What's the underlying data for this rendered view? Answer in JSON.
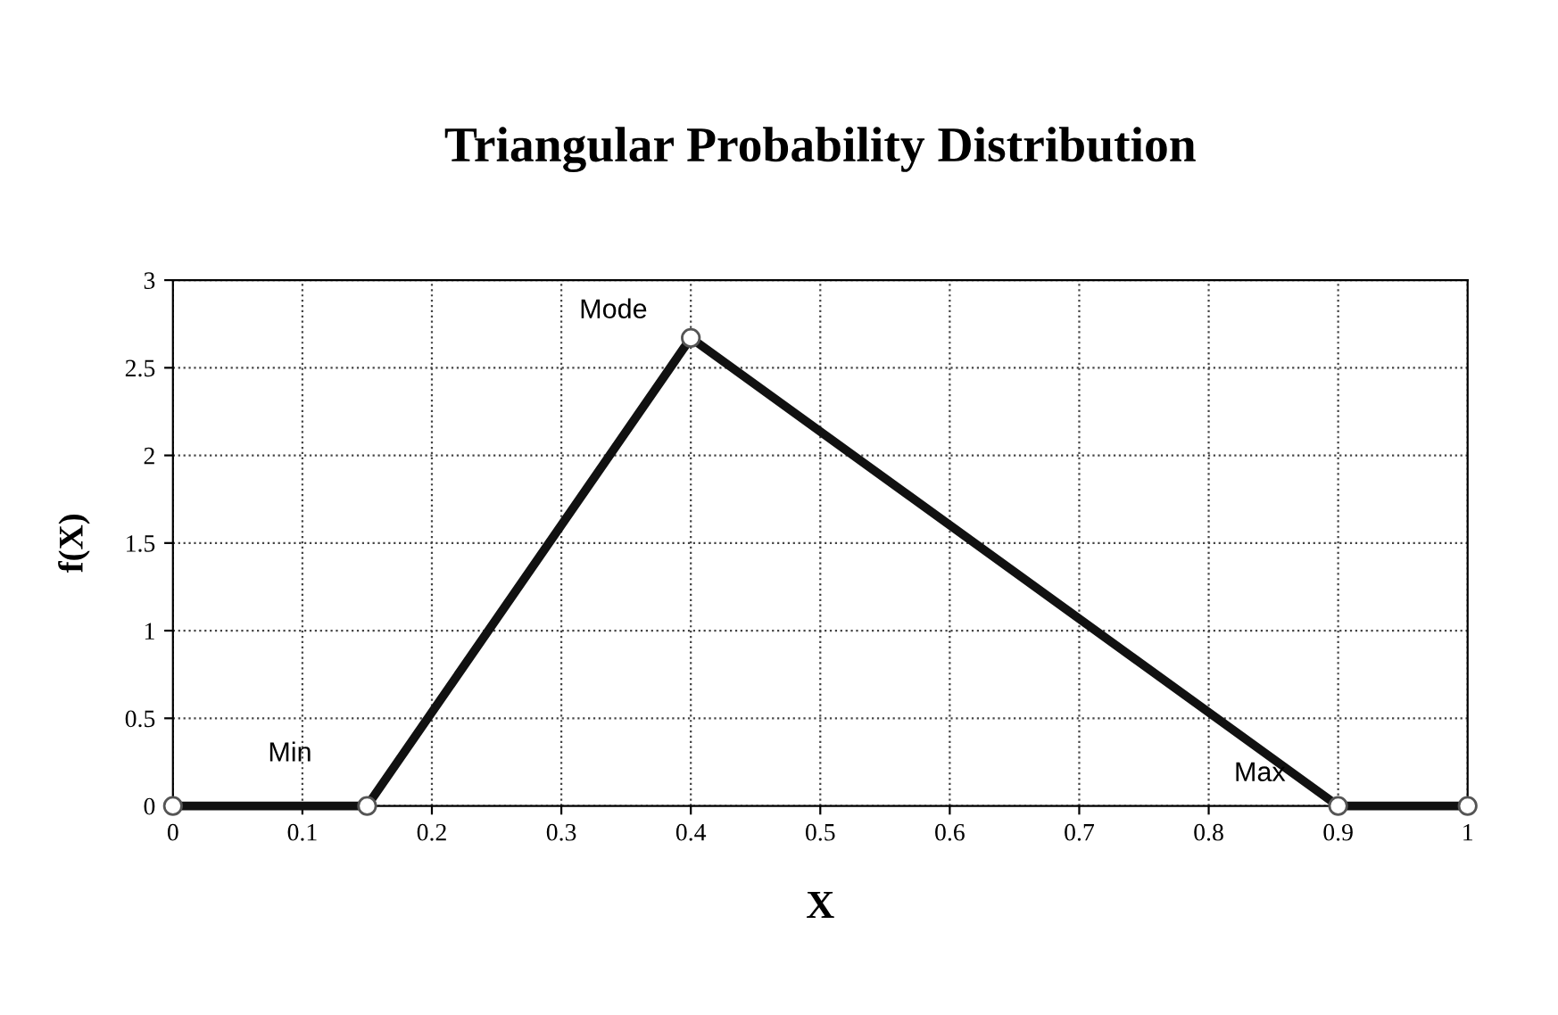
{
  "chart_data": {
    "type": "line",
    "title": "Triangular Probability Distribution",
    "xlabel": "X",
    "ylabel": "f(X)",
    "x": [
      0,
      0.15,
      0.4,
      0.9,
      1
    ],
    "series": [
      {
        "color": "#111111",
        "values": [
          0,
          0,
          2.67,
          0,
          0
        ]
      }
    ],
    "xlim": [
      0,
      1
    ],
    "xticks": [
      0,
      0.1,
      0.2,
      0.3,
      0.4,
      0.5,
      0.6,
      0.7,
      0.8,
      0.9,
      1
    ],
    "ylim": [
      0,
      3
    ],
    "yticks": [
      0,
      0.5,
      1,
      1.5,
      2,
      2.5,
      3
    ],
    "grid": true,
    "marker": "circle",
    "line_style": "solid",
    "legend": false,
    "annotations": [
      {
        "text": "Min",
        "x": 0.15,
        "y": 0
      },
      {
        "text": "Mode",
        "x": 0.4,
        "y": 2.67
      },
      {
        "text": "Max",
        "x": 0.9,
        "y": 0
      }
    ]
  }
}
